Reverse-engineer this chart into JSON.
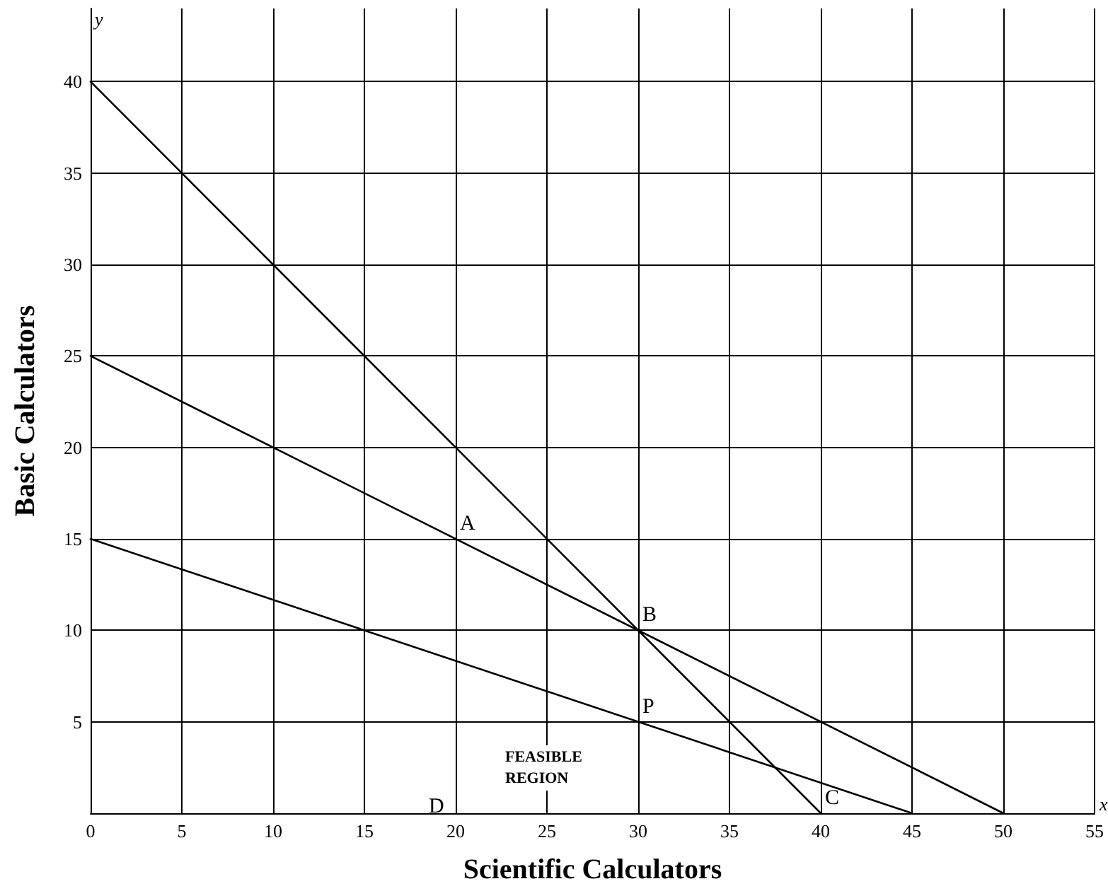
{
  "chart_data": {
    "type": "line",
    "xlabel": "Scientific Calculators",
    "ylabel": "Basic Calculators",
    "xlim": [
      0,
      55
    ],
    "ylim": [
      0,
      44
    ],
    "xticks": [
      0,
      5,
      10,
      15,
      20,
      25,
      30,
      35,
      40,
      45,
      50,
      55
    ],
    "yticks": [
      5,
      10,
      15,
      20,
      25,
      30,
      35,
      40
    ],
    "grid": true,
    "marker": "none",
    "line_style": "solid",
    "series": [
      {
        "color": "#000000",
        "x": [
          0,
          40
        ],
        "values": [
          40,
          0
        ]
      },
      {
        "color": "#000000",
        "x": [
          0,
          50
        ],
        "values": [
          25,
          0
        ]
      },
      {
        "color": "#000000",
        "x": [
          0,
          45
        ],
        "values": [
          15,
          0
        ]
      }
    ],
    "annotations": [
      {
        "text": "A",
        "x": 20,
        "y": 15
      },
      {
        "text": "B",
        "x": 30,
        "y": 10
      },
      {
        "text": "C",
        "x": 40,
        "y": 0
      },
      "D",
      {
        "text": "P",
        "x": 30,
        "y": 5
      },
      "FEASIBLE REGION",
      "y",
      "x"
    ]
  }
}
